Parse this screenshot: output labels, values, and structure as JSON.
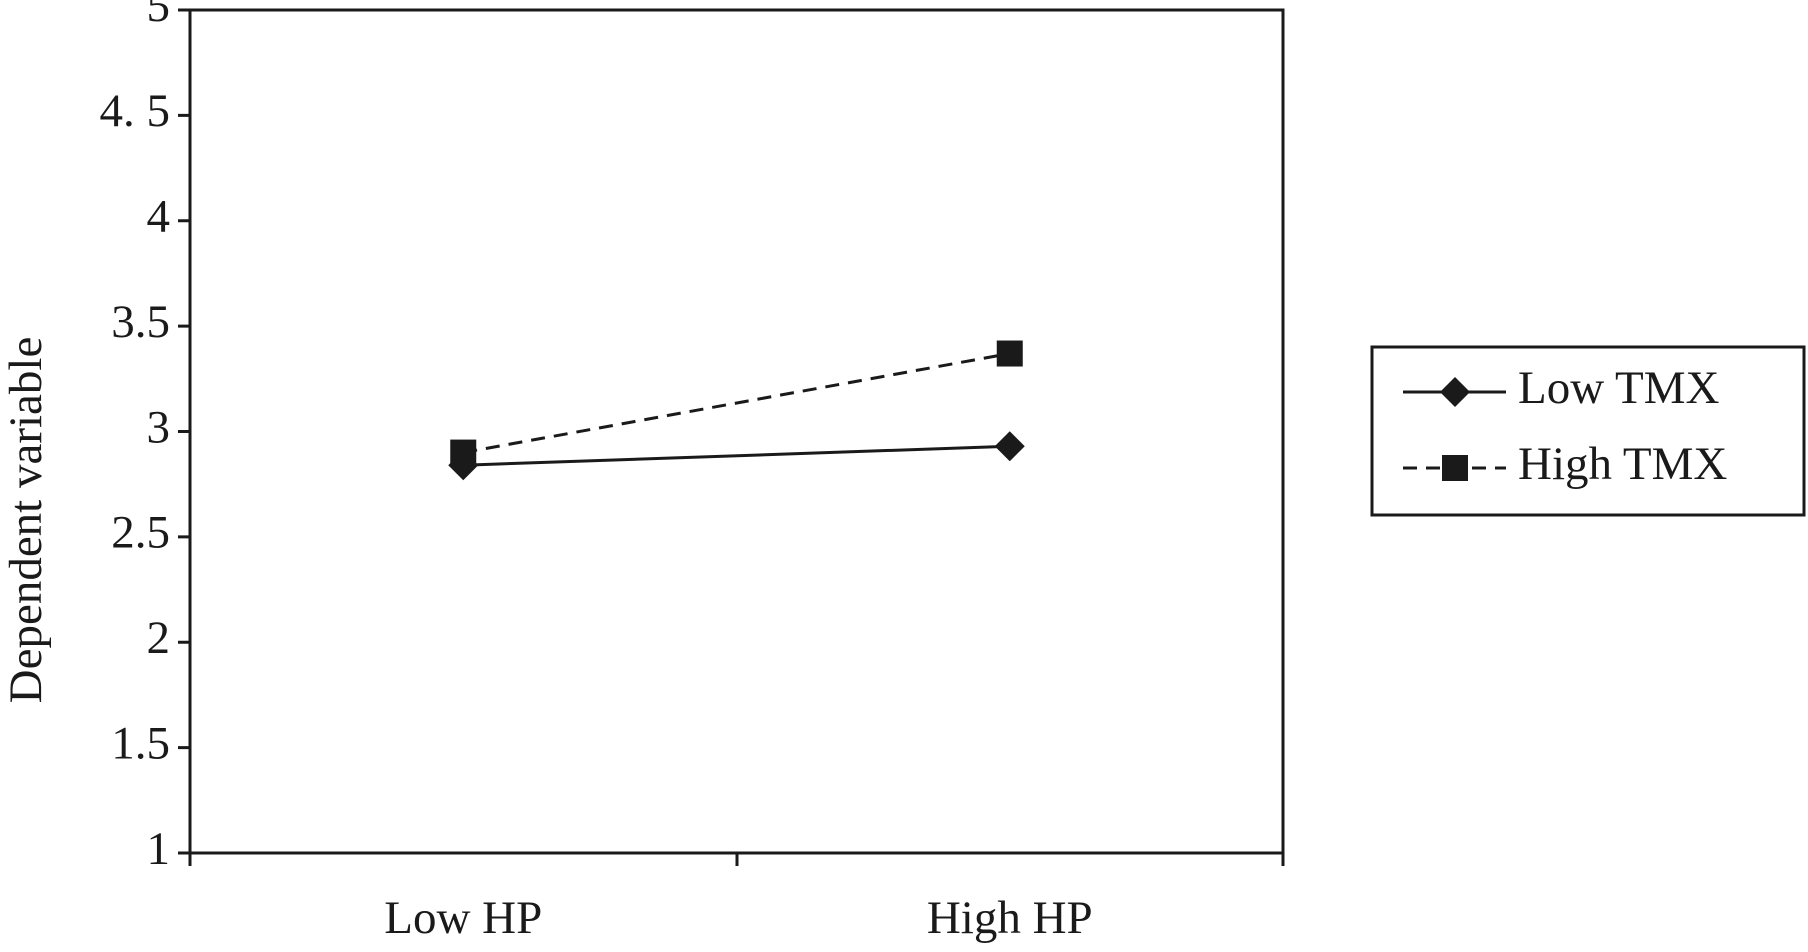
{
  "chart_data": {
    "type": "line",
    "y_label": "Dependent variable",
    "categories": [
      "Low HP",
      "High HP"
    ],
    "series": [
      {
        "name": "Low TMX",
        "color": "#1a1a1a",
        "marker": "diamond",
        "line_style": "solid",
        "values": [
          2.84,
          2.93
        ]
      },
      {
        "name": "High TMX",
        "color": "#1a1a1a",
        "marker": "square",
        "line_style": "dashed",
        "values": [
          2.9,
          3.37
        ]
      }
    ],
    "ylim": [
      1,
      5
    ],
    "yticks": [
      1,
      1.5,
      2,
      2.5,
      3,
      3.5,
      4,
      {
        "value": 4.5,
        "label": "4. 5"
      },
      5
    ],
    "grid": false,
    "legend": "right"
  }
}
